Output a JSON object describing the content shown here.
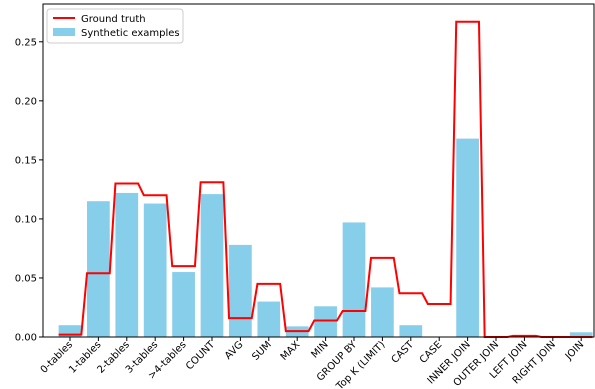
{
  "chart_data": {
    "type": "bar",
    "categories": [
      "0-tables",
      "1-tables",
      "2-tables",
      "3-tables",
      ">4-tables",
      "COUNT",
      "AVG",
      "SUM",
      "MAX",
      "MIN",
      "GROUP BY",
      "Top K (LIMIT)",
      "CAST",
      "CASE",
      "INNER JOIN",
      "OUTER JOIN",
      "LEFT JOIN",
      "RIGHT JOIN",
      "JOIN"
    ],
    "series": [
      {
        "name": "Synthetic examples",
        "kind": "bar",
        "color": "#87ceeb",
        "values": [
          0.01,
          0.115,
          0.122,
          0.113,
          0.055,
          0.121,
          0.078,
          0.03,
          0.009,
          0.026,
          0.097,
          0.042,
          0.01,
          0.0,
          0.168,
          0.0,
          0.0,
          0.0,
          0.004
        ]
      },
      {
        "name": "Ground truth",
        "kind": "step",
        "color": "#ff0000",
        "values": [
          0.002,
          0.054,
          0.13,
          0.12,
          0.06,
          0.131,
          0.016,
          0.045,
          0.005,
          0.014,
          0.022,
          0.067,
          0.037,
          0.028,
          0.267,
          0.0,
          0.001,
          0.0,
          0.0
        ]
      }
    ],
    "title": "",
    "xlabel": "",
    "ylabel": "",
    "ylim": [
      0,
      0.282
    ],
    "yticks": [
      0.0,
      0.05,
      0.1,
      0.15,
      0.2,
      0.25
    ],
    "ytick_labels": [
      "0.00",
      "0.05",
      "0.10",
      "0.15",
      "0.20",
      "0.25"
    ],
    "grid": false,
    "legend_position": "top-left"
  }
}
